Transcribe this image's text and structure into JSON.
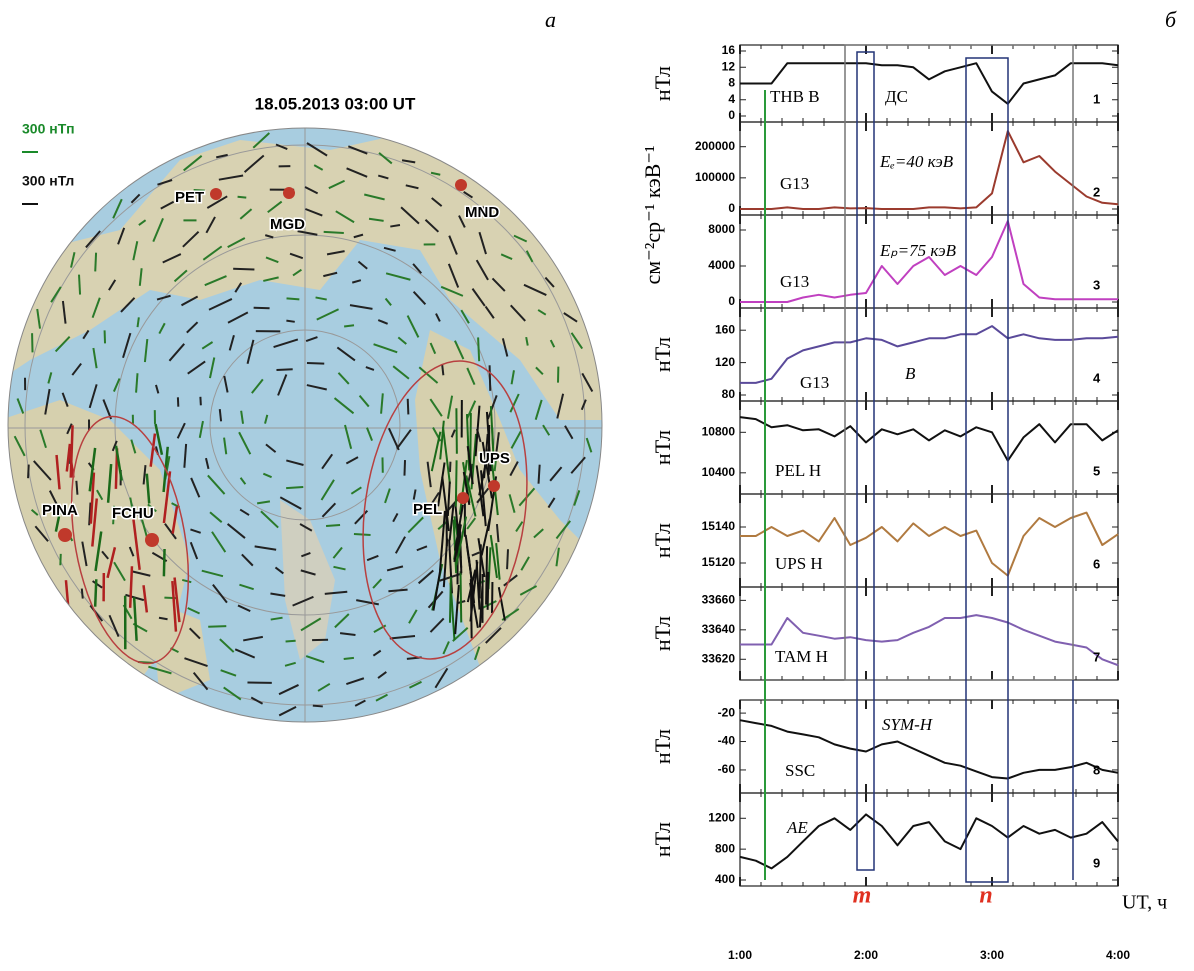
{
  "figure_labels": {
    "a": "а",
    "b": "б"
  },
  "map": {
    "title": "18.05.2013 03:00 UT",
    "scale_green": "300 нТп",
    "scale_black": "300 нТл",
    "stations": [
      "PET",
      "MGD",
      "MND",
      "PINA",
      "FCHU",
      "PEL",
      "UPS"
    ]
  },
  "markers": [
    "m",
    "n"
  ],
  "chart_data": [
    {
      "type": "line",
      "number": "1",
      "ylabel": "нТл",
      "annotations": [
        "ТНВ B",
        "ДС"
      ],
      "color": "#111111",
      "x": [
        1,
        1.125,
        1.25,
        1.375,
        1.5,
        1.625,
        1.75,
        1.875,
        2,
        2.125,
        2.25,
        2.375,
        2.5,
        2.625,
        2.75,
        2.875,
        3,
        3.125,
        3.25,
        3.375,
        3.5,
        3.625,
        3.75,
        3.875,
        4
      ],
      "values": [
        8,
        8,
        8,
        13,
        13,
        13,
        13,
        13,
        13,
        12.5,
        12.5,
        12,
        9,
        11,
        12,
        13,
        6,
        3,
        8,
        9,
        10,
        13,
        13,
        13,
        12.5
      ],
      "xlim": [
        1,
        4
      ],
      "ylim": [
        0,
        16
      ],
      "yticks": [
        0,
        4,
        8,
        12,
        16
      ]
    },
    {
      "type": "line",
      "number": "2",
      "ylabel": "см⁻²ср⁻¹ кэВ⁻¹",
      "annotations": [
        "G13",
        "Eₑ=40 кэВ"
      ],
      "color": "#9b3b2e",
      "x": [
        1,
        1.125,
        1.25,
        1.375,
        1.5,
        1.625,
        1.75,
        1.875,
        2,
        2.125,
        2.25,
        2.375,
        2.5,
        2.625,
        2.75,
        2.875,
        3,
        3.125,
        3.25,
        3.375,
        3.5,
        3.625,
        3.75,
        3.875,
        4
      ],
      "values": [
        0,
        0,
        0,
        5000,
        0,
        0,
        5000,
        2000,
        3000,
        0,
        0,
        0,
        5000,
        5000,
        2000,
        5000,
        50000,
        250000,
        150000,
        170000,
        120000,
        80000,
        40000,
        20000,
        15000
      ],
      "xlim": [
        1,
        4
      ],
      "ylim": [
        0,
        260000
      ],
      "yticks": [
        0,
        100000,
        200000
      ]
    },
    {
      "type": "line",
      "number": "3",
      "annotations": [
        "G13",
        "Eₚ=75 кэВ"
      ],
      "color": "#c040c0",
      "x": [
        1,
        1.125,
        1.25,
        1.375,
        1.5,
        1.625,
        1.75,
        1.875,
        2,
        2.125,
        2.25,
        2.375,
        2.5,
        2.625,
        2.75,
        2.875,
        3,
        3.125,
        3.25,
        3.375,
        3.5,
        3.625,
        3.75,
        3.875,
        4
      ],
      "values": [
        0,
        0,
        0,
        0,
        500,
        800,
        500,
        800,
        1000,
        4000,
        2000,
        4000,
        5000,
        3000,
        4000,
        3000,
        5000,
        9000,
        2000,
        500,
        300,
        300,
        300,
        300,
        300
      ],
      "xlim": [
        1,
        4
      ],
      "ylim": [
        0,
        9000
      ],
      "yticks": [
        0,
        4000,
        8000
      ]
    },
    {
      "type": "line",
      "number": "4",
      "ylabel": "нТл",
      "annotations": [
        "G13",
        "B"
      ],
      "color": "#5a4a9a",
      "x": [
        1,
        1.125,
        1.25,
        1.375,
        1.5,
        1.625,
        1.75,
        1.875,
        2,
        2.125,
        2.25,
        2.375,
        2.5,
        2.625,
        2.75,
        2.875,
        3,
        3.125,
        3.25,
        3.375,
        3.5,
        3.625,
        3.75,
        3.875,
        4
      ],
      "values": [
        95,
        95,
        100,
        125,
        135,
        140,
        145,
        145,
        150,
        148,
        140,
        145,
        150,
        150,
        155,
        155,
        165,
        150,
        155,
        150,
        148,
        148,
        150,
        150,
        152
      ],
      "xlim": [
        1,
        4
      ],
      "ylim": [
        80,
        180
      ],
      "yticks": [
        80,
        120,
        160
      ]
    },
    {
      "type": "line",
      "number": "5",
      "ylabel": "нТл",
      "annotations": [
        "PEL H"
      ],
      "color": "#111111",
      "x": [
        1,
        1.125,
        1.25,
        1.375,
        1.5,
        1.625,
        1.75,
        1.875,
        2,
        2.125,
        2.25,
        2.375,
        2.5,
        2.625,
        2.75,
        2.875,
        3,
        3.125,
        3.25,
        3.375,
        3.5,
        3.625,
        3.75,
        3.875,
        4
      ],
      "values": [
        10950,
        10930,
        10850,
        10870,
        10820,
        10830,
        10760,
        10860,
        10700,
        10830,
        10780,
        10830,
        10720,
        10820,
        10760,
        10850,
        10800,
        10520,
        10750,
        10880,
        10700,
        10880,
        10880,
        10720,
        10820
      ],
      "xlim": [
        1,
        4
      ],
      "ylim": [
        10250,
        11050
      ],
      "yticks": [
        10400,
        10800
      ]
    },
    {
      "type": "line",
      "number": "6",
      "ylabel": "нТл",
      "annotations": [
        "UPS H"
      ],
      "color": "#b07a40",
      "x": [
        1,
        1.125,
        1.25,
        1.375,
        1.5,
        1.625,
        1.75,
        1.875,
        2,
        2.125,
        2.25,
        2.375,
        2.5,
        2.625,
        2.75,
        2.875,
        3,
        3.125,
        3.25,
        3.375,
        3.5,
        3.625,
        3.75,
        3.875,
        4
      ],
      "values": [
        15135,
        15135,
        15140,
        15135,
        15138,
        15132,
        15145,
        15130,
        15134,
        15140,
        15132,
        15142,
        15135,
        15140,
        15135,
        15138,
        15120,
        15113,
        15135,
        15145,
        15140,
        15145,
        15148,
        15130,
        15136
      ],
      "xlim": [
        1,
        4
      ],
      "ylim": [
        15110,
        15155
      ],
      "yticks": [
        15120,
        15140
      ]
    },
    {
      "type": "line",
      "number": "7",
      "ylabel": "нТл",
      "annotations": [
        "TAM H"
      ],
      "color": "#8060b0",
      "x": [
        1,
        1.125,
        1.25,
        1.375,
        1.5,
        1.625,
        1.75,
        1.875,
        2,
        2.125,
        2.25,
        2.375,
        2.5,
        2.625,
        2.75,
        2.875,
        3,
        3.125,
        3.25,
        3.375,
        3.5,
        3.625,
        3.75,
        3.875,
        4
      ],
      "values": [
        33630,
        33630,
        33630,
        33648,
        33638,
        33636,
        33634,
        33635,
        33633,
        33632,
        33633,
        33638,
        33642,
        33648,
        33648,
        33650,
        33648,
        33645,
        33640,
        33636,
        33632,
        33630,
        33628,
        33620,
        33616
      ],
      "xlim": [
        1,
        4
      ],
      "ylim": [
        33610,
        33665
      ],
      "yticks": [
        33620,
        33640,
        33660
      ]
    },
    {
      "type": "line",
      "number": "8",
      "ylabel": "нТл",
      "annotations": [
        "SYM-H",
        "SSC"
      ],
      "color": "#111111",
      "x": [
        1,
        1.125,
        1.25,
        1.375,
        1.5,
        1.625,
        1.75,
        1.875,
        2,
        2.125,
        2.25,
        2.375,
        2.5,
        2.625,
        2.75,
        2.875,
        3,
        3.125,
        3.25,
        3.375,
        3.5,
        3.625,
        3.75,
        3.875,
        4
      ],
      "values": [
        -25,
        -27,
        -29,
        -33,
        -35,
        -37,
        -42,
        -45,
        -47,
        -42,
        -40,
        -45,
        -50,
        -55,
        -57,
        -61,
        -65,
        -66,
        -62,
        -60,
        -60,
        -58,
        -55,
        -60,
        -62
      ],
      "xlim": [
        1,
        4
      ],
      "ylim": [
        -72,
        -15
      ],
      "yticks": [
        -60,
        -40,
        -20
      ]
    },
    {
      "type": "line",
      "number": "9",
      "ylabel": "нТл",
      "annotations": [
        "AE"
      ],
      "color": "#111111",
      "xlabel": "UT, ч",
      "x": [
        1,
        1.125,
        1.25,
        1.375,
        1.5,
        1.625,
        1.75,
        1.875,
        2,
        2.125,
        2.25,
        2.375,
        2.5,
        2.625,
        2.75,
        2.875,
        3,
        3.125,
        3.25,
        3.375,
        3.5,
        3.625,
        3.75,
        3.875,
        4
      ],
      "values": [
        700,
        650,
        550,
        700,
        900,
        1100,
        1200,
        1050,
        1250,
        1100,
        850,
        1100,
        1150,
        900,
        800,
        1200,
        1100,
        950,
        1100,
        1000,
        1050,
        950,
        1000,
        1150,
        900
      ],
      "xlim": [
        1,
        4
      ],
      "ylim": [
        400,
        1450
      ],
      "yticks": [
        400,
        800,
        1200
      ],
      "xticks": [
        {
          "value": 1,
          "label": "1:00"
        },
        {
          "value": 2,
          "label": "2:00"
        },
        {
          "value": 3,
          "label": "3:00"
        },
        {
          "value": 4,
          "label": "4:00"
        }
      ]
    }
  ]
}
